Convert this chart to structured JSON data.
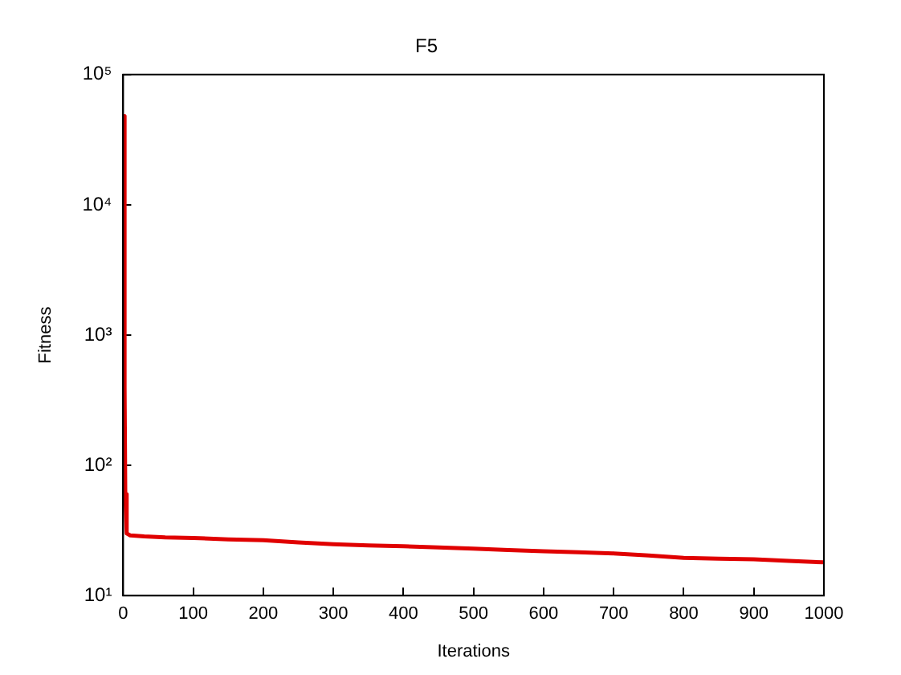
{
  "chart_data": {
    "type": "line",
    "title": "F5",
    "xlabel": "Iterations",
    "ylabel": "Fitness",
    "x": [
      1,
      2,
      3,
      5,
      10,
      30,
      60,
      100,
      150,
      200,
      250,
      300,
      350,
      400,
      450,
      500,
      550,
      600,
      650,
      700,
      750,
      800,
      850,
      900,
      950,
      1000
    ],
    "series": [
      {
        "color": "#e00000",
        "values": [
          48000,
          400,
          60,
          30,
          29,
          28.5,
          28,
          27.7,
          27,
          26.6,
          25.6,
          24.8,
          24.3,
          23.9,
          23.4,
          22.9,
          22.4,
          21.9,
          21.5,
          21.1,
          20.3,
          19.5,
          19.2,
          19,
          18.5,
          18
        ]
      }
    ],
    "log": "y",
    "xlim": [
      0,
      1000
    ],
    "xticks": [
      0,
      100,
      200,
      300,
      400,
      500,
      600,
      700,
      800,
      900,
      1000
    ],
    "ylim": [
      10,
      100000
    ],
    "yticks": [
      {
        "value": 10,
        "label": "10¹"
      },
      {
        "value": 100,
        "label": "10²"
      },
      {
        "value": 1000,
        "label": "10³"
      },
      {
        "value": 10000,
        "label": "10⁴"
      },
      {
        "value": 100000,
        "label": "10⁵"
      }
    ],
    "grid": false,
    "legend": false,
    "marker": "none",
    "line_style": "solid"
  }
}
